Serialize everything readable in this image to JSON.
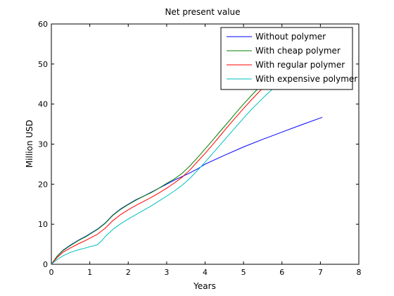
{
  "chart_data": {
    "type": "line",
    "title": "Net present value",
    "xlabel": "Years",
    "ylabel": "Million USD",
    "xlim": [
      0,
      8
    ],
    "ylim": [
      0,
      60
    ],
    "xticks": [
      0,
      1,
      2,
      3,
      4,
      5,
      6,
      7,
      8
    ],
    "yticks": [
      0,
      10,
      20,
      30,
      40,
      50,
      60
    ],
    "grid": false,
    "legend_position": "top-right",
    "series": [
      {
        "name": "Without polymer",
        "color": "#0000ff",
        "x": [
          0,
          0.15,
          0.3,
          0.5,
          0.7,
          0.9,
          1.0,
          1.2,
          1.4,
          1.6,
          1.8,
          2.0,
          2.2,
          2.4,
          2.6,
          2.8,
          3.0,
          3.2,
          3.4,
          3.6,
          3.8,
          4.0,
          4.5,
          5.0,
          5.5,
          6.0,
          6.5,
          7.05
        ],
        "y": [
          0,
          2.0,
          3.5,
          4.8,
          6.0,
          7.0,
          7.6,
          8.8,
          10.3,
          12.3,
          13.8,
          15.0,
          16.1,
          17.0,
          18.0,
          19.0,
          20.0,
          21.0,
          21.9,
          22.8,
          23.8,
          25.0,
          27.2,
          29.3,
          31.2,
          33.0,
          34.8,
          36.7
        ]
      },
      {
        "name": "With cheap polymer",
        "color": "#008000",
        "x": [
          0,
          0.15,
          0.3,
          0.5,
          0.7,
          0.9,
          1.0,
          1.2,
          1.4,
          1.6,
          1.8,
          2.0,
          2.2,
          2.4,
          2.6,
          2.8,
          3.0,
          3.2,
          3.4,
          3.6,
          3.8,
          4.0,
          4.2,
          4.4,
          4.6,
          4.8,
          5.0,
          5.2,
          5.4,
          5.6,
          5.8
        ],
        "y": [
          0,
          2.0,
          3.4,
          4.7,
          5.9,
          6.9,
          7.5,
          8.7,
          10.2,
          12.2,
          13.7,
          14.9,
          16.0,
          17.0,
          17.9,
          19.0,
          20.2,
          21.3,
          22.7,
          24.5,
          26.6,
          28.8,
          31.0,
          33.3,
          35.5,
          37.8,
          40.0,
          42.1,
          44.1,
          45.9,
          47.7
        ]
      },
      {
        "name": "With regular polymer",
        "color": "#ff0000",
        "x": [
          0,
          0.15,
          0.3,
          0.5,
          0.7,
          0.9,
          1.0,
          1.2,
          1.4,
          1.6,
          1.8,
          2.0,
          2.2,
          2.4,
          2.6,
          2.8,
          3.0,
          3.2,
          3.4,
          3.6,
          3.8,
          4.0,
          4.2,
          4.4,
          4.6,
          4.8,
          5.0,
          5.2,
          5.4,
          5.6,
          5.8
        ],
        "y": [
          0,
          1.7,
          3.0,
          4.1,
          5.1,
          6.0,
          6.5,
          7.5,
          9.0,
          10.9,
          12.4,
          13.6,
          14.7,
          15.7,
          16.7,
          17.8,
          19.0,
          20.3,
          21.7,
          23.5,
          25.6,
          27.7,
          29.9,
          32.2,
          34.5,
          36.7,
          38.9,
          41.0,
          43.0,
          44.9,
          46.7
        ]
      },
      {
        "name": "With expensive polymer",
        "color": "#00bfbf",
        "x": [
          0,
          0.15,
          0.3,
          0.5,
          0.7,
          0.9,
          1.0,
          1.1,
          1.2,
          1.3,
          1.4,
          1.6,
          1.8,
          2.0,
          2.2,
          2.4,
          2.6,
          2.8,
          3.0,
          3.2,
          3.4,
          3.6,
          3.8,
          4.0,
          4.2,
          4.4,
          4.6,
          4.8,
          5.0,
          5.2,
          5.4,
          5.6,
          5.8,
          6.0
        ],
        "y": [
          0,
          1.2,
          2.1,
          3.0,
          3.6,
          4.1,
          4.4,
          4.6,
          4.9,
          5.8,
          6.9,
          8.7,
          10.1,
          11.3,
          12.4,
          13.5,
          14.6,
          15.8,
          17.0,
          18.3,
          19.7,
          21.4,
          23.4,
          25.5,
          27.7,
          29.9,
          32.1,
          34.3,
          36.5,
          38.6,
          40.5,
          42.4,
          44.1,
          45.7
        ]
      }
    ]
  }
}
